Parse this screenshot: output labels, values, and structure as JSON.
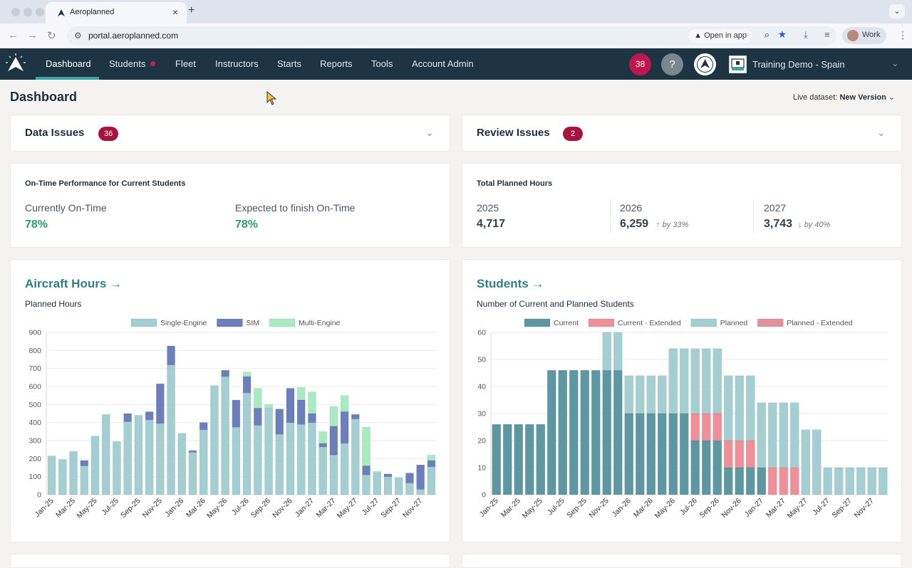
{
  "browser": {
    "tab_title": "Aeroplanned",
    "url": "portal.aeroplanned.com",
    "open_in_app": "Open in app",
    "profile": "Work"
  },
  "nav": {
    "items": [
      {
        "label": "Dashboard"
      },
      {
        "label": "Students"
      },
      {
        "label": "Fleet"
      },
      {
        "label": "Instructors"
      },
      {
        "label": "Starts"
      },
      {
        "label": "Reports"
      },
      {
        "label": "Tools"
      },
      {
        "label": "Account Admin"
      }
    ],
    "notification_count": "38",
    "help": "?",
    "org_name": "Training Demo - Spain"
  },
  "page": {
    "title": "Dashboard",
    "dataset_label": "Live dataset:",
    "dataset_value": "New Version"
  },
  "data_issues": {
    "title": "Data Issues",
    "count": "36"
  },
  "review_issues": {
    "title": "Review Issues",
    "count": "2"
  },
  "ontime": {
    "title": "On-Time Performance for Current Students",
    "current_label": "Currently On-Time",
    "current_value": "78%",
    "expected_label": "Expected to finish On-Time",
    "expected_value": "78%"
  },
  "planned_hours": {
    "title": "Total Planned Hours",
    "years": [
      {
        "year": "2025",
        "value": "4,717",
        "trend": ""
      },
      {
        "year": "2026",
        "value": "6,259",
        "trend": "by 33%"
      },
      {
        "year": "2027",
        "value": "3,743",
        "trend": "by 40%"
      }
    ]
  },
  "colors": {
    "nav_bg": "#1d3443",
    "accent_teal": "#3aa5a6",
    "badge_red": "#a8123f",
    "positive_green": "#2e9a6e"
  },
  "icons": [
    "aeroplanned-logo-icon",
    "close-icon",
    "plus-icon",
    "back-icon",
    "forward-icon",
    "reload-icon",
    "site-settings-icon",
    "zoom-icon",
    "star-icon",
    "download-icon",
    "menu-icon",
    "chevron-down-icon",
    "arrow-right-icon",
    "arrow-up-icon",
    "arrow-down-icon",
    "cursor-icon"
  ],
  "chart_data": [
    {
      "type": "bar",
      "stacked": true,
      "title": "Aircraft Hours",
      "subtitle": "Planned Hours",
      "xlabel": "",
      "ylabel": "",
      "ylim": [
        0,
        900
      ],
      "yticks": [
        0,
        100,
        200,
        300,
        400,
        500,
        600,
        700,
        800,
        900
      ],
      "legend": "top",
      "grid": true,
      "categories": [
        "Jan-25",
        "Feb-25",
        "Mar-25",
        "Apr-25",
        "May-25",
        "Jun-25",
        "Jul-25",
        "Aug-25",
        "Sep-25",
        "Oct-25",
        "Nov-25",
        "Dec-25",
        "Jan-26",
        "Feb-26",
        "Mar-26",
        "Apr-26",
        "May-26",
        "Jun-26",
        "Jul-26",
        "Aug-26",
        "Sep-26",
        "Oct-26",
        "Nov-26",
        "Dec-26",
        "Jan-27",
        "Feb-27",
        "Mar-27",
        "Apr-27",
        "May-27",
        "Jun-27",
        "Jul-27",
        "Aug-27",
        "Sep-27",
        "Oct-27",
        "Nov-27",
        "Dec-27"
      ],
      "tick_labels": [
        "Jan-25",
        "Mar-25",
        "May-25",
        "Jul-25",
        "Sep-25",
        "Nov-25",
        "Jan-26",
        "Mar-26",
        "May-26",
        "Jul-26",
        "Sep-26",
        "Nov-26",
        "Jan-27",
        "Mar-27",
        "May-27",
        "Jul-27",
        "Sep-27",
        "Nov-27"
      ],
      "series": [
        {
          "name": "Single-Engine",
          "color": "#a3cfd2",
          "values": [
            215,
            195,
            240,
            160,
            325,
            445,
            295,
            405,
            440,
            415,
            395,
            720,
            340,
            235,
            360,
            605,
            655,
            375,
            565,
            385,
            480,
            335,
            400,
            390,
            400,
            265,
            220,
            285,
            420,
            110,
            120,
            100,
            95,
            65,
            30,
            155
          ]
        },
        {
          "name": "SIM",
          "color": "#6c7fbd",
          "values": [
            0,
            0,
            0,
            30,
            0,
            0,
            0,
            45,
            0,
            45,
            220,
            105,
            0,
            10,
            40,
            0,
            35,
            150,
            90,
            95,
            0,
            140,
            190,
            135,
            50,
            20,
            160,
            175,
            25,
            50,
            0,
            15,
            0,
            55,
            135,
            35
          ]
        },
        {
          "name": "Multi-Engine",
          "color": "#a9ebc0",
          "values": [
            0,
            0,
            0,
            0,
            0,
            0,
            0,
            0,
            0,
            0,
            0,
            0,
            0,
            0,
            0,
            0,
            0,
            0,
            25,
            110,
            20,
            0,
            0,
            70,
            120,
            65,
            110,
            90,
            0,
            215,
            10,
            0,
            0,
            0,
            0,
            30
          ]
        }
      ]
    },
    {
      "type": "bar",
      "stacked": true,
      "title": "Students",
      "subtitle": "Number of Current and Planned Students",
      "xlabel": "",
      "ylabel": "",
      "ylim": [
        0,
        60
      ],
      "yticks": [
        0,
        10,
        20,
        30,
        40,
        50,
        60
      ],
      "legend": "top",
      "grid": true,
      "categories": [
        "Jan-25",
        "Feb-25",
        "Mar-25",
        "Apr-25",
        "May-25",
        "Jun-25",
        "Jul-25",
        "Aug-25",
        "Sep-25",
        "Oct-25",
        "Nov-25",
        "Dec-25",
        "Jan-26",
        "Feb-26",
        "Mar-26",
        "Apr-26",
        "May-26",
        "Jun-26",
        "Jul-26",
        "Aug-26",
        "Sep-26",
        "Oct-26",
        "Nov-26",
        "Dec-26",
        "Jan-27",
        "Feb-27",
        "Mar-27",
        "Apr-27",
        "May-27",
        "Jun-27",
        "Jul-27",
        "Aug-27",
        "Sep-27",
        "Oct-27",
        "Nov-27",
        "Dec-27"
      ],
      "tick_labels": [
        "Jan-25",
        "Mar-25",
        "May-25",
        "Jul-25",
        "Sep-25",
        "Nov-25",
        "Jan-26",
        "Mar-26",
        "May-26",
        "Jul-26",
        "Sep-26",
        "Nov-26",
        "Jan-27",
        "Mar-27",
        "May-27",
        "Jul-27",
        "Sep-27",
        "Nov-27"
      ],
      "series": [
        {
          "name": "Current",
          "color": "#5d97a1",
          "values": [
            26,
            26,
            26,
            26,
            26,
            46,
            46,
            46,
            46,
            46,
            46,
            46,
            30,
            30,
            30,
            30,
            30,
            30,
            20,
            20,
            20,
            10,
            10,
            10,
            10,
            0,
            0,
            0,
            0,
            0,
            0,
            0,
            0,
            0,
            0,
            0
          ]
        },
        {
          "name": "Current - Extended",
          "color": "#f08f97",
          "values": [
            0,
            0,
            0,
            0,
            0,
            0,
            0,
            0,
            0,
            0,
            0,
            0,
            0,
            0,
            0,
            0,
            0,
            0,
            10,
            10,
            10,
            10,
            10,
            10,
            0,
            10,
            10,
            10,
            0,
            0,
            0,
            0,
            0,
            0,
            0,
            0
          ]
        },
        {
          "name": "Planned",
          "color": "#a3cfd2",
          "values": [
            0,
            0,
            0,
            0,
            0,
            0,
            0,
            0,
            0,
            0,
            14,
            14,
            14,
            14,
            14,
            14,
            24,
            24,
            24,
            24,
            24,
            24,
            24,
            24,
            24,
            24,
            24,
            24,
            24,
            24,
            10,
            10,
            10,
            10,
            10,
            10
          ]
        },
        {
          "name": "Planned - Extended",
          "color": "#e2909c",
          "values": [
            0,
            0,
            0,
            0,
            0,
            0,
            0,
            0,
            0,
            0,
            0,
            0,
            0,
            0,
            0,
            0,
            0,
            0,
            0,
            0,
            0,
            0,
            0,
            0,
            0,
            0,
            0,
            0,
            0,
            0,
            0,
            0,
            0,
            0,
            0,
            0
          ]
        }
      ]
    }
  ]
}
